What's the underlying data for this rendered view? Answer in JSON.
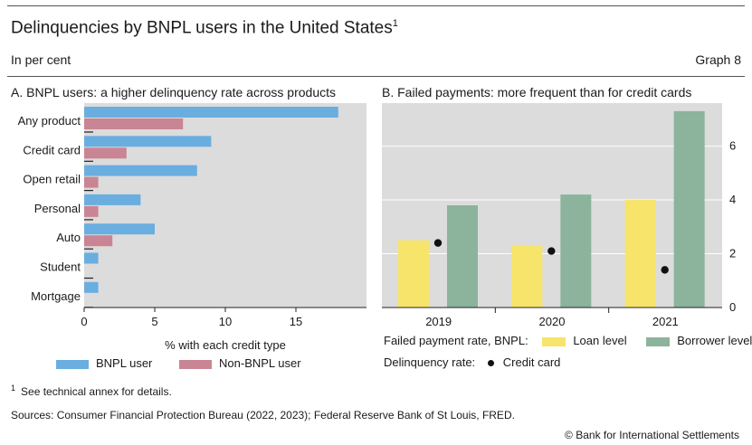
{
  "header": {
    "title": "Delinquencies by BNPL users in the United States",
    "title_sup": "1",
    "subtitle": "In per cent",
    "graph_number": "Graph 8"
  },
  "chart_data": [
    {
      "type": "bar",
      "orientation": "horizontal",
      "title": "A. BNPL users: a higher delinquency rate across products",
      "xlabel": "% with each credit type",
      "categories": [
        "Any product",
        "Credit card",
        "Open retail",
        "Personal",
        "Auto",
        "Student",
        "Mortgage"
      ],
      "series": [
        {
          "name": "BNPL user",
          "color": "#6aaee0",
          "values": [
            18,
            9,
            8,
            4,
            5,
            1,
            1
          ]
        },
        {
          "name": "Non-BNPL user",
          "color": "#c98593",
          "values": [
            7,
            3,
            1,
            1,
            2,
            null,
            null
          ]
        }
      ],
      "xlim": [
        0,
        20
      ],
      "xticks": [
        0,
        5,
        10,
        15
      ],
      "grid": false,
      "legend_position": "bottom"
    },
    {
      "type": "bar",
      "title": "B. Failed payments: more frequent than for credit cards",
      "categories": [
        "2019",
        "2020",
        "2021"
      ],
      "series": [
        {
          "name": "Loan level",
          "kind": "bar",
          "color": "#f7e46a",
          "values": [
            2.5,
            2.3,
            4.0
          ]
        },
        {
          "name": "Borrower level",
          "kind": "bar",
          "color": "#8cb39b",
          "values": [
            3.8,
            4.2,
            7.3
          ]
        },
        {
          "name": "Credit card",
          "kind": "point",
          "color": "#111111",
          "values": [
            2.4,
            2.1,
            1.4
          ]
        }
      ],
      "ylim": [
        0,
        7.6
      ],
      "yticks": [
        0,
        2,
        4,
        6
      ],
      "grid": true,
      "y_axis_side": "right",
      "legend": {
        "failed_label": "Failed payment rate, BNPL:",
        "delinquency_label": "Delinquency rate:"
      }
    }
  ],
  "footnote": {
    "marker": "1",
    "text": "See technical annex for details."
  },
  "sources": "Sources: Consumer Financial Protection Bureau (2022, 2023); Federal Reserve Bank of St Louis, FRED.",
  "copyright": "© Bank for International Settlements"
}
